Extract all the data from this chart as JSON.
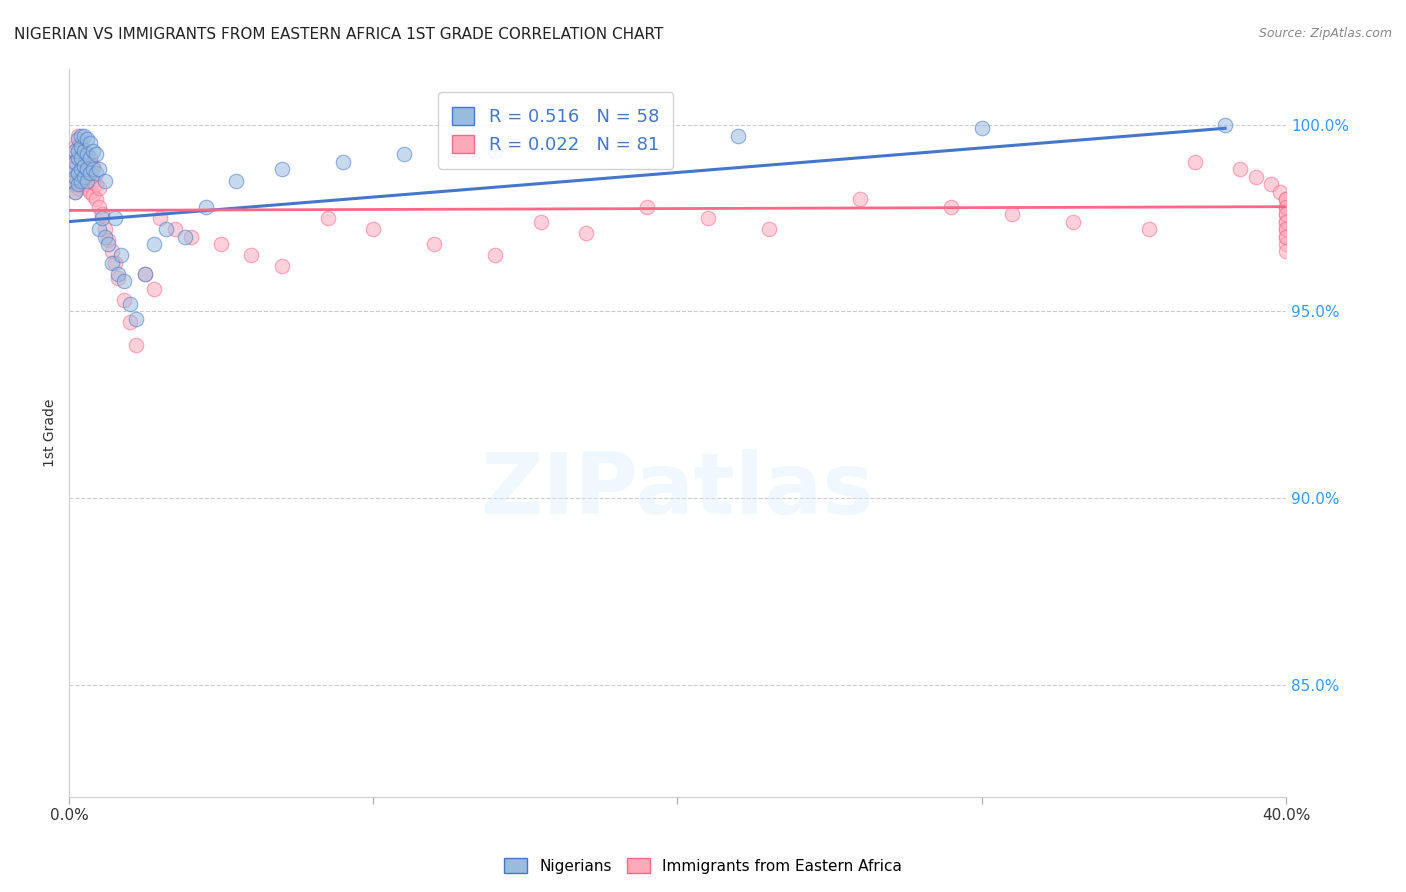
{
  "title": "NIGERIAN VS IMMIGRANTS FROM EASTERN AFRICA 1ST GRADE CORRELATION CHART",
  "source": "Source: ZipAtlas.com",
  "ylabel": "1st Grade",
  "ytick_labels": [
    "85.0%",
    "90.0%",
    "95.0%",
    "100.0%"
  ],
  "ytick_values": [
    0.85,
    0.9,
    0.95,
    1.0
  ],
  "xlim": [
    0.0,
    0.4
  ],
  "ylim": [
    0.82,
    1.015
  ],
  "legend_blue_R": "0.516",
  "legend_blue_N": "58",
  "legend_pink_R": "0.022",
  "legend_pink_N": "81",
  "blue_color": "#99BBDD",
  "pink_color": "#FFAABB",
  "trendline_blue_color": "#4477CC",
  "trendline_pink_color": "#FF6688",
  "blue_scatter_x": [
    0.001,
    0.001,
    0.002,
    0.002,
    0.002,
    0.002,
    0.003,
    0.003,
    0.003,
    0.003,
    0.003,
    0.004,
    0.004,
    0.004,
    0.004,
    0.004,
    0.005,
    0.005,
    0.005,
    0.005,
    0.006,
    0.006,
    0.006,
    0.006,
    0.007,
    0.007,
    0.007,
    0.008,
    0.008,
    0.009,
    0.009,
    0.01,
    0.01,
    0.011,
    0.012,
    0.012,
    0.013,
    0.014,
    0.015,
    0.016,
    0.017,
    0.018,
    0.02,
    0.022,
    0.025,
    0.028,
    0.032,
    0.038,
    0.045,
    0.055,
    0.07,
    0.09,
    0.11,
    0.14,
    0.175,
    0.22,
    0.3,
    0.38
  ],
  "blue_scatter_y": [
    0.985,
    0.988,
    0.982,
    0.986,
    0.99,
    0.993,
    0.984,
    0.987,
    0.991,
    0.993,
    0.996,
    0.985,
    0.988,
    0.991,
    0.994,
    0.997,
    0.986,
    0.989,
    0.993,
    0.997,
    0.985,
    0.988,
    0.992,
    0.996,
    0.987,
    0.991,
    0.995,
    0.988,
    0.993,
    0.987,
    0.992,
    0.972,
    0.988,
    0.975,
    0.97,
    0.985,
    0.968,
    0.963,
    0.975,
    0.96,
    0.965,
    0.958,
    0.952,
    0.948,
    0.96,
    0.968,
    0.972,
    0.97,
    0.978,
    0.985,
    0.988,
    0.99,
    0.992,
    0.993,
    0.995,
    0.997,
    0.999,
    1.0
  ],
  "pink_scatter_x": [
    0.001,
    0.001,
    0.002,
    0.002,
    0.002,
    0.002,
    0.003,
    0.003,
    0.003,
    0.003,
    0.003,
    0.004,
    0.004,
    0.004,
    0.004,
    0.005,
    0.005,
    0.005,
    0.006,
    0.006,
    0.006,
    0.007,
    0.007,
    0.007,
    0.008,
    0.008,
    0.008,
    0.009,
    0.009,
    0.01,
    0.01,
    0.011,
    0.012,
    0.013,
    0.014,
    0.015,
    0.016,
    0.018,
    0.02,
    0.022,
    0.025,
    0.028,
    0.03,
    0.035,
    0.04,
    0.05,
    0.06,
    0.07,
    0.085,
    0.1,
    0.12,
    0.14,
    0.155,
    0.17,
    0.19,
    0.21,
    0.23,
    0.26,
    0.29,
    0.31,
    0.33,
    0.355,
    0.37,
    0.385,
    0.39,
    0.395,
    0.398,
    0.4,
    0.4,
    0.4,
    0.4,
    0.4,
    0.4,
    0.4,
    0.4,
    0.4,
    0.4,
    0.4,
    0.4,
    0.4,
    0.4
  ],
  "pink_scatter_y": [
    0.984,
    0.99,
    0.982,
    0.986,
    0.99,
    0.994,
    0.983,
    0.987,
    0.991,
    0.994,
    0.997,
    0.984,
    0.988,
    0.991,
    0.995,
    0.984,
    0.988,
    0.992,
    0.983,
    0.987,
    0.991,
    0.982,
    0.986,
    0.99,
    0.981,
    0.985,
    0.989,
    0.98,
    0.984,
    0.978,
    0.983,
    0.976,
    0.972,
    0.969,
    0.966,
    0.963,
    0.959,
    0.953,
    0.947,
    0.941,
    0.96,
    0.956,
    0.975,
    0.972,
    0.97,
    0.968,
    0.965,
    0.962,
    0.975,
    0.972,
    0.968,
    0.965,
    0.974,
    0.971,
    0.978,
    0.975,
    0.972,
    0.98,
    0.978,
    0.976,
    0.974,
    0.972,
    0.99,
    0.988,
    0.986,
    0.984,
    0.982,
    0.98,
    0.978,
    0.976,
    0.974,
    0.972,
    0.97,
    0.968,
    0.966,
    0.98,
    0.978,
    0.976,
    0.974,
    0.972,
    0.97
  ]
}
